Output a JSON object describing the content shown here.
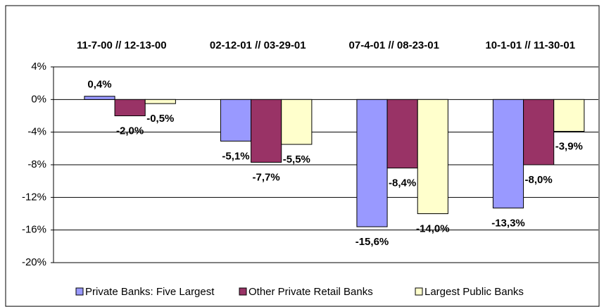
{
  "chart_data": {
    "type": "bar",
    "categories": [
      "11-7-00 // 12-13-00",
      "02-12-01 // 03-29-01",
      "07-4-01 // 08-23-01",
      "10-1-01 // 11-30-01"
    ],
    "series": [
      {
        "name": "Private Banks: Five Largest",
        "color": "#9999ff",
        "values": [
          0.4,
          -5.1,
          -15.6,
          -13.3
        ],
        "value_labels": [
          "0,4%",
          "-5,1%",
          "-15,6%",
          "-13,3%"
        ]
      },
      {
        "name": "Other Private Retail Banks",
        "color": "#993366",
        "values": [
          -2.0,
          -7.7,
          -8.4,
          -8.0
        ],
        "value_labels": [
          "-2,0%",
          "-7,7%",
          "-8,4%",
          "-8,0%"
        ]
      },
      {
        "name": "Largest Public Banks",
        "color": "#ffffcc",
        "values": [
          -0.5,
          -5.5,
          -14.0,
          -3.9
        ],
        "value_labels": [
          "-0,5%",
          "-5,5%",
          "-14,0%",
          "-3,9%"
        ]
      }
    ],
    "ylim": [
      -20,
      4
    ],
    "yticks": [
      {
        "value": 4,
        "label": "4%"
      },
      {
        "value": 0,
        "label": "0%"
      },
      {
        "value": -4,
        "label": "-4%"
      },
      {
        "value": -8,
        "label": "-8%"
      },
      {
        "value": -12,
        "label": "-12%"
      },
      {
        "value": -16,
        "label": "-16%"
      },
      {
        "value": -20,
        "label": "-20%"
      }
    ],
    "grid": true,
    "legend": "bottom"
  }
}
